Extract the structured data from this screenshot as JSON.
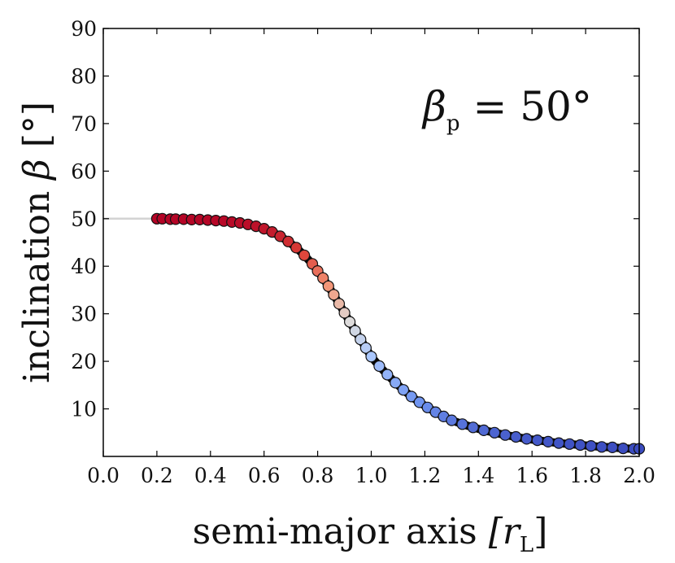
{
  "chart_data": {
    "type": "scatter",
    "xlabel": {
      "main": "semi-major axis ",
      "sym": "[r",
      "sub": "L",
      "close": "]"
    },
    "ylabel": {
      "main": "inclination ",
      "sym": "β",
      "unit": " [°]"
    },
    "annotation": {
      "sym": "β",
      "sub": "p",
      "rest": " = 50°"
    },
    "xlim": [
      0.0,
      2.0
    ],
    "ylim": [
      0,
      90
    ],
    "xticks": [
      "0.0",
      "0.2",
      "0.4",
      "0.6",
      "0.8",
      "1.0",
      "1.2",
      "1.4",
      "1.6",
      "1.8",
      "2.0"
    ],
    "yticks": [
      "10",
      "20",
      "30",
      "40",
      "50",
      "60",
      "70",
      "80",
      "90"
    ],
    "grid": false,
    "series": [
      {
        "line": [
          [
            0.0,
            50.0
          ],
          [
            0.2,
            50.0
          ]
        ],
        "line_color": "#d3d3d3",
        "curve_color": "#000000",
        "colormap": "coolwarm (reversed: red at small a, blue at large a)",
        "points": [
          [
            0.2,
            50.0
          ],
          [
            0.22,
            50.0
          ],
          [
            0.25,
            49.9
          ],
          [
            0.27,
            49.9
          ],
          [
            0.3,
            49.9
          ],
          [
            0.33,
            49.8
          ],
          [
            0.36,
            49.8
          ],
          [
            0.39,
            49.7
          ],
          [
            0.42,
            49.6
          ],
          [
            0.45,
            49.5
          ],
          [
            0.48,
            49.3
          ],
          [
            0.51,
            49.1
          ],
          [
            0.54,
            48.8
          ],
          [
            0.57,
            48.4
          ],
          [
            0.6,
            47.9
          ],
          [
            0.63,
            47.2
          ],
          [
            0.66,
            46.3
          ],
          [
            0.69,
            45.2
          ],
          [
            0.72,
            43.9
          ],
          [
            0.75,
            42.3
          ],
          [
            0.78,
            40.5
          ],
          [
            0.8,
            39.0
          ],
          [
            0.82,
            37.5
          ],
          [
            0.84,
            35.8
          ],
          [
            0.86,
            34.0
          ],
          [
            0.88,
            32.1
          ],
          [
            0.9,
            30.2
          ],
          [
            0.92,
            28.3
          ],
          [
            0.94,
            26.4
          ],
          [
            0.96,
            24.6
          ],
          [
            0.98,
            22.8
          ],
          [
            1.0,
            21.0
          ],
          [
            1.03,
            19.0
          ],
          [
            1.06,
            17.2
          ],
          [
            1.09,
            15.5
          ],
          [
            1.12,
            14.0
          ],
          [
            1.15,
            12.6
          ],
          [
            1.18,
            11.4
          ],
          [
            1.21,
            10.3
          ],
          [
            1.24,
            9.3
          ],
          [
            1.27,
            8.4
          ],
          [
            1.3,
            7.6
          ],
          [
            1.34,
            6.8
          ],
          [
            1.38,
            6.1
          ],
          [
            1.42,
            5.5
          ],
          [
            1.46,
            5.0
          ],
          [
            1.5,
            4.5
          ],
          [
            1.54,
            4.1
          ],
          [
            1.58,
            3.7
          ],
          [
            1.62,
            3.4
          ],
          [
            1.66,
            3.1
          ],
          [
            1.7,
            2.8
          ],
          [
            1.74,
            2.6
          ],
          [
            1.78,
            2.4
          ],
          [
            1.82,
            2.2
          ],
          [
            1.86,
            2.0
          ],
          [
            1.9,
            1.9
          ],
          [
            1.94,
            1.7
          ],
          [
            1.98,
            1.6
          ],
          [
            2.0,
            1.6
          ]
        ]
      }
    ]
  }
}
